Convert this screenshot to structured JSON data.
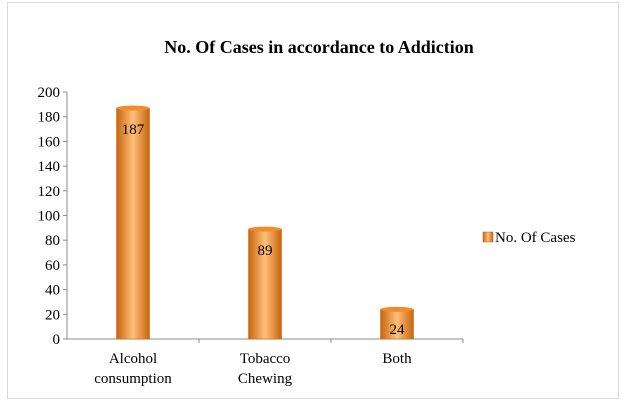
{
  "chart_data": {
    "type": "bar",
    "title": "No. Of Cases in accordance to Addiction",
    "categories": [
      [
        "Alcohol",
        "consumption"
      ],
      [
        "Tobacco",
        "Chewing"
      ],
      [
        "Both"
      ]
    ],
    "series": [
      {
        "name": "No. Of Cases",
        "values": [
          187,
          89,
          24
        ],
        "data_labels": [
          "187",
          "89",
          "24"
        ]
      }
    ],
    "ylim": [
      0,
      200
    ],
    "yticks": [
      "0",
      "20",
      "40",
      "60",
      "80",
      "100",
      "120",
      "140",
      "160",
      "180",
      "200"
    ],
    "grid": false,
    "legend_position": "right",
    "bar_color": "#f28c28",
    "bar_color_light": "#ffc07a",
    "bar_color_dark": "#c8640c"
  }
}
